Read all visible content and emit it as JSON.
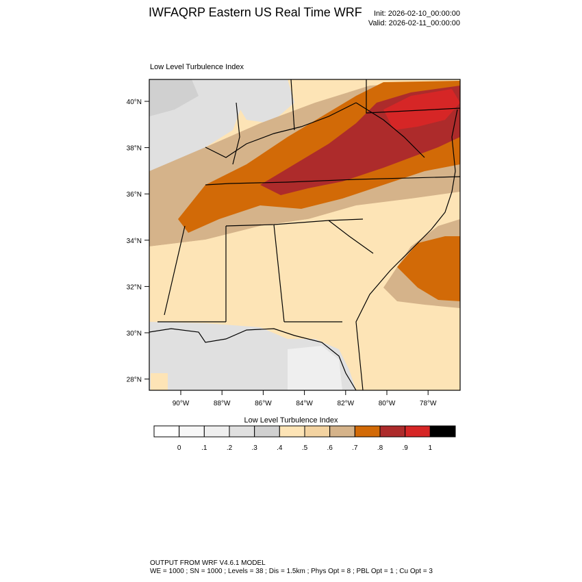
{
  "header": {
    "title": "IWFAQRP Eastern US Real Time WRF",
    "init": "Init: 2026-02-10_00:00:00",
    "valid": "Valid: 2026-02-11_00:00:00"
  },
  "map": {
    "subtitle": "Low Level Turbulence Index",
    "lon_labels": [
      "90°W",
      "88°W",
      "86°W",
      "84°W",
      "82°W",
      "80°W",
      "78°W"
    ],
    "lat_labels": [
      "40°N",
      "38°N",
      "36°N",
      "34°N",
      "32°N",
      "30°N",
      "28°N"
    ]
  },
  "colorbar": {
    "title": "Low Level Turbulence Index",
    "colors": [
      "#ffffff",
      "#f7f7f7",
      "#efefef",
      "#e0e0e0",
      "#d0d0d0",
      "#fde4b6",
      "#f3d3a1",
      "#d5b38a",
      "#d26a07",
      "#ad2b2b",
      "#d62626",
      "#000000"
    ],
    "labels": [
      "0",
      ".1",
      ".2",
      ".3",
      ".4",
      ".5",
      ".6",
      ".7",
      ".8",
      ".9",
      "1"
    ]
  },
  "footer": {
    "line1": "OUTPUT FROM WRF V4.6.1 MODEL",
    "line2": "WE = 1000 ; SN = 1000 ; Levels = 38 ; Dis = 1.5km ; Phys Opt = 8 ; PBL Opt = 1 ; Cu Opt = 3"
  }
}
